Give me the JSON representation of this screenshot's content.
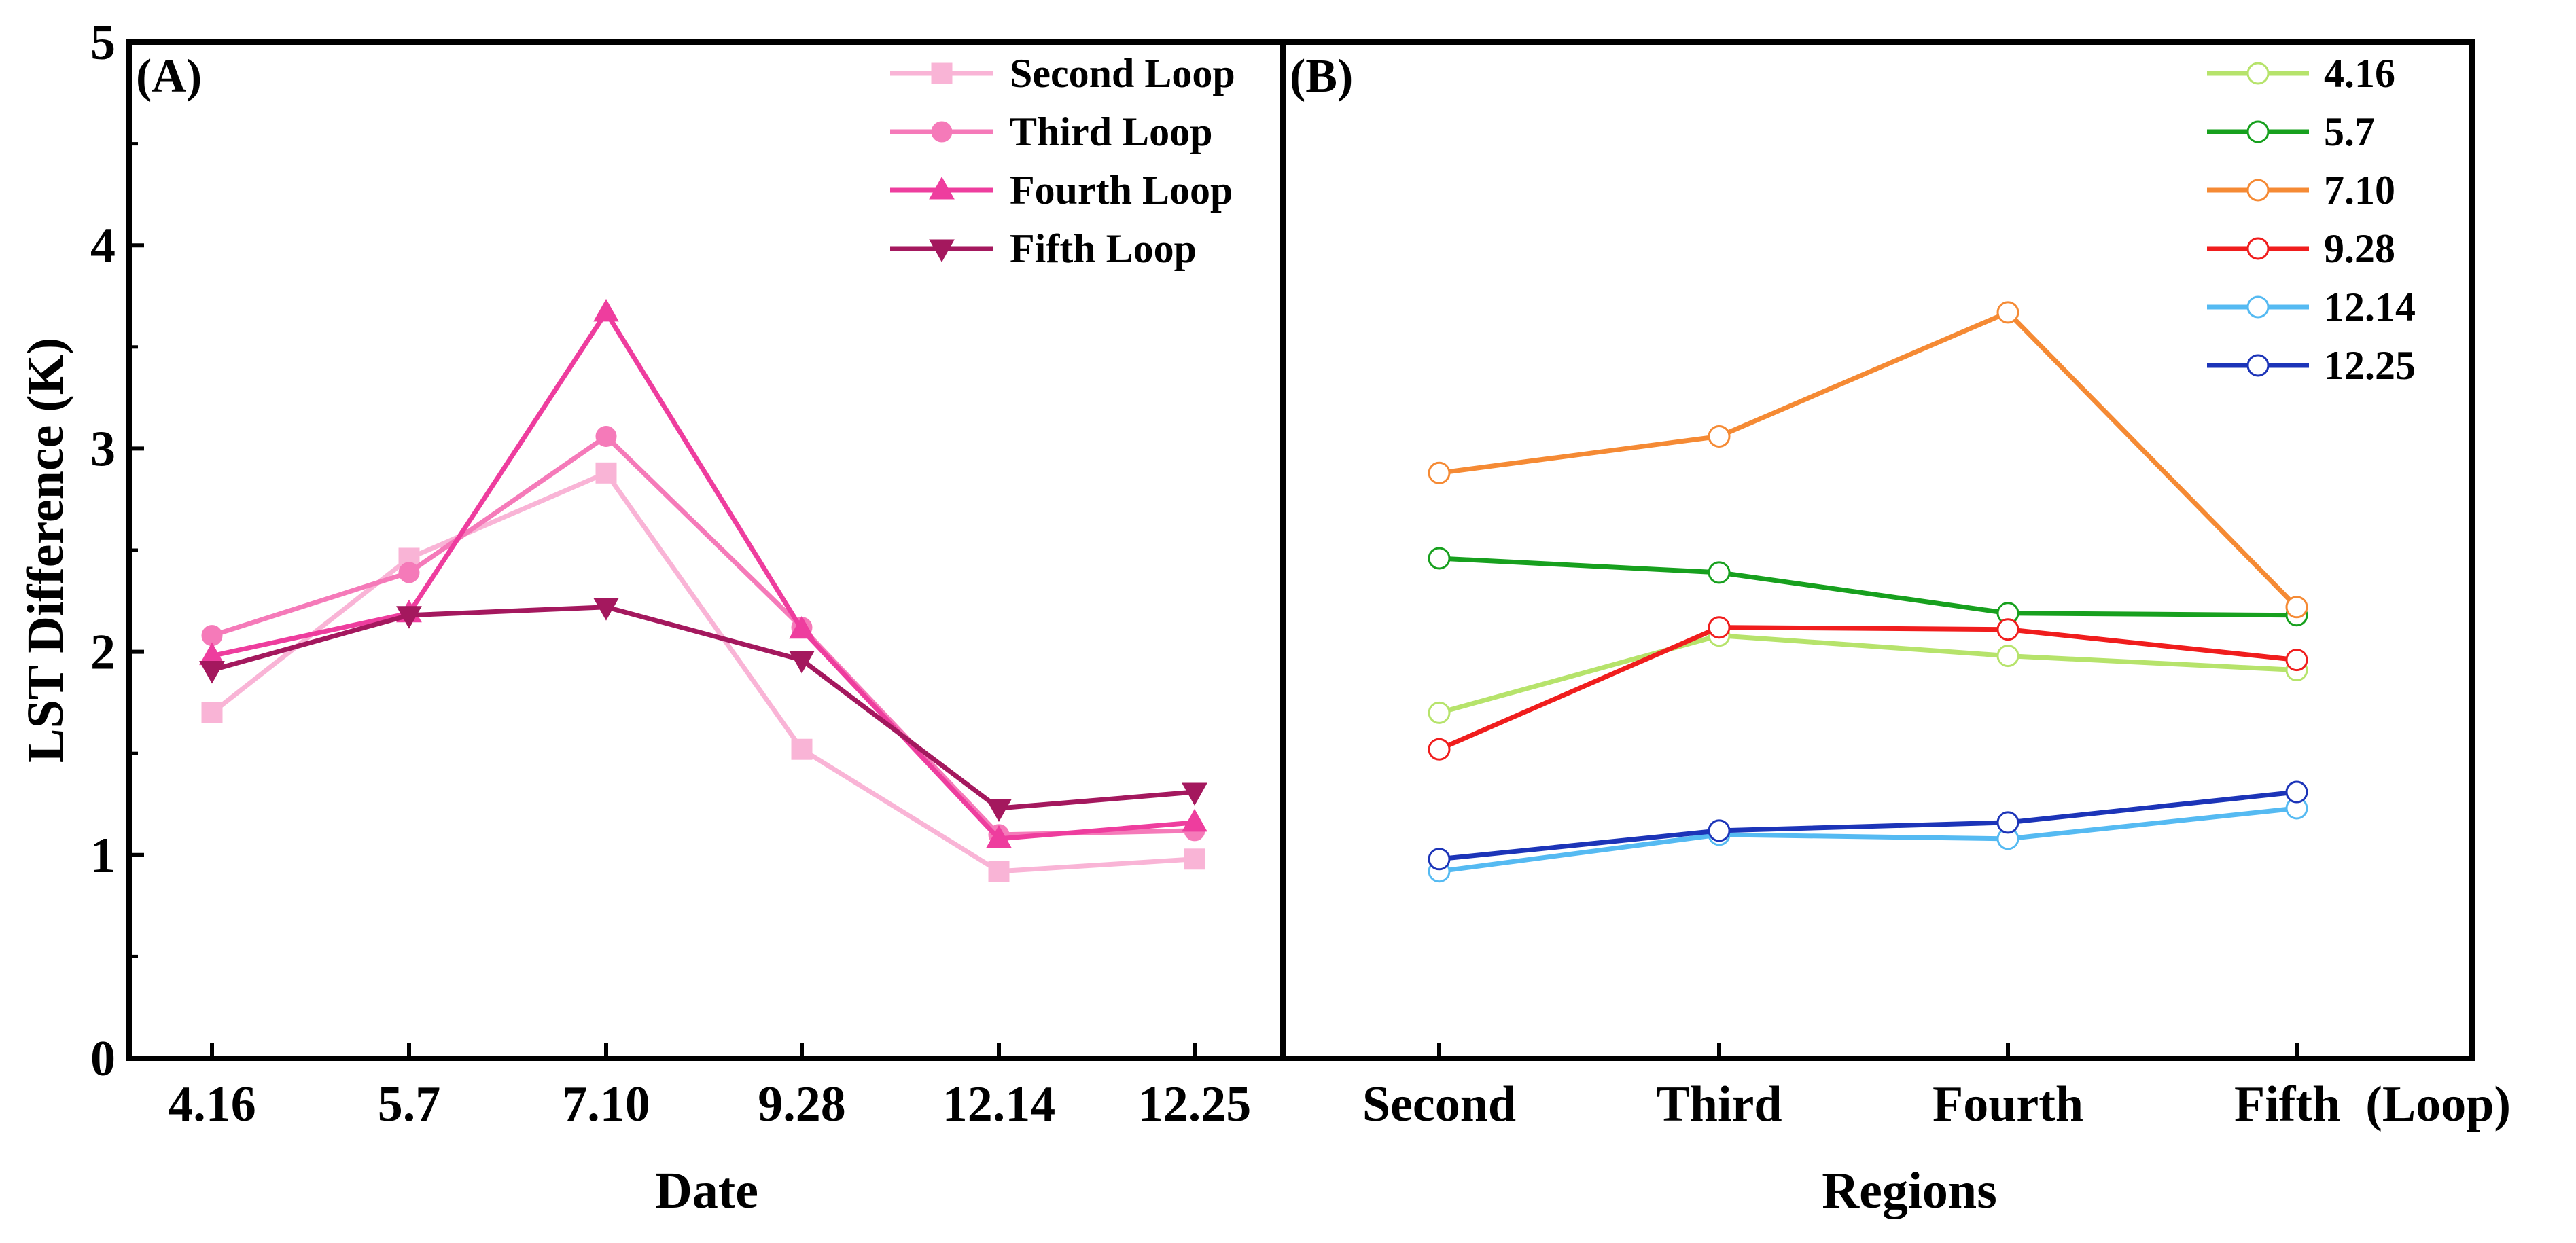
{
  "chart_data": [
    {
      "panel": "(A)",
      "type": "line",
      "xlabel": "Date",
      "ylabel": "LST Difference (K)",
      "ylim": [
        0,
        5
      ],
      "yticks": [
        "0",
        "1",
        "2",
        "3",
        "4",
        "5"
      ],
      "categories": [
        "4.16",
        "5.7",
        "7.10",
        "9.28",
        "12.14",
        "12.25"
      ],
      "series": [
        {
          "name": "Second Loop",
          "marker": "square",
          "color": "#f9b4d6",
          "values": [
            1.7,
            2.46,
            2.88,
            1.52,
            0.92,
            0.98
          ]
        },
        {
          "name": "Third Loop",
          "marker": "circle",
          "color": "#f57ab9",
          "values": [
            2.08,
            2.39,
            3.06,
            2.12,
            1.1,
            1.12
          ]
        },
        {
          "name": "Fourth Loop",
          "marker": "triangle-up",
          "color": "#ee3d9e",
          "values": [
            1.98,
            2.19,
            3.67,
            2.11,
            1.08,
            1.16
          ]
        },
        {
          "name": "Fifth Loop",
          "marker": "triangle-down",
          "color": "#a4185e",
          "values": [
            1.91,
            2.18,
            2.22,
            1.96,
            1.23,
            1.31
          ]
        }
      ]
    },
    {
      "panel": "(B)",
      "type": "line",
      "xlabel": "Regions",
      "ylim": [
        0,
        5
      ],
      "categories": [
        "Second",
        "Third",
        "Fourth",
        "Fifth  (Loop)"
      ],
      "series": [
        {
          "name": "4.16",
          "color": "#b6e36b",
          "values": [
            1.7,
            2.08,
            1.98,
            1.91
          ]
        },
        {
          "name": "5.7",
          "color": "#17a01e",
          "values": [
            2.46,
            2.39,
            2.19,
            2.18
          ]
        },
        {
          "name": "7.10",
          "color": "#f58a34",
          "values": [
            2.88,
            3.06,
            3.67,
            2.22
          ]
        },
        {
          "name": "9.28",
          "color": "#f01d1d",
          "values": [
            1.52,
            2.12,
            2.11,
            1.96
          ]
        },
        {
          "name": "12.14",
          "color": "#55baf2",
          "values": [
            0.92,
            1.1,
            1.08,
            1.23
          ]
        },
        {
          "name": "12.25",
          "color": "#1c34b8",
          "values": [
            0.98,
            1.12,
            1.16,
            1.31
          ]
        }
      ]
    }
  ]
}
